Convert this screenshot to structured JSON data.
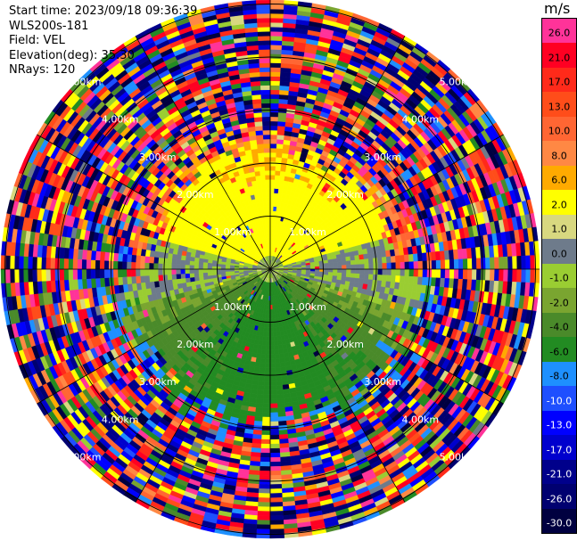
{
  "header": {
    "start_time": "Start time: 2023/09/18 09:36:39",
    "site": "WLS200s-181",
    "field": "Field: VEL",
    "elevation": "Elevation(deg): 35.30",
    "nrays": "NRays: 120"
  },
  "colorbar": {
    "unit": "m/s",
    "levels": [
      {
        "v": 26.0,
        "label": "26.0",
        "color": "#ff3399",
        "text": "#000"
      },
      {
        "v": 21.0,
        "label": "21.0",
        "color": "#ff0022",
        "text": "#000"
      },
      {
        "v": 17.0,
        "label": "17.0",
        "color": "#ff2a1a",
        "text": "#000"
      },
      {
        "v": 13.0,
        "label": "13.0",
        "color": "#ff4d1a",
        "text": "#000"
      },
      {
        "v": 10.0,
        "label": "10.0",
        "color": "#ff6633",
        "text": "#000"
      },
      {
        "v": 8.0,
        "label": "8.0",
        "color": "#ff8844",
        "text": "#000"
      },
      {
        "v": 6.0,
        "label": "6.0",
        "color": "#ffaa00",
        "text": "#000"
      },
      {
        "v": 2.0,
        "label": "2.0",
        "color": "#ffff00",
        "text": "#000"
      },
      {
        "v": 1.0,
        "label": "1.0",
        "color": "#d8d880",
        "text": "#000"
      },
      {
        "v": 0.0,
        "label": "0.0",
        "color": "#6e7b8b",
        "text": "#000"
      },
      {
        "v": -1.0,
        "label": "-1.0",
        "color": "#9acd32",
        "text": "#000"
      },
      {
        "v": -2.0,
        "label": "-2.0",
        "color": "#7aa530",
        "text": "#000"
      },
      {
        "v": -4.0,
        "label": "-4.0",
        "color": "#4a8a2a",
        "text": "#000"
      },
      {
        "v": -6.0,
        "label": "-6.0",
        "color": "#228b22",
        "text": "#000"
      },
      {
        "v": -8.0,
        "label": "-8.0",
        "color": "#1e90ff",
        "text": "#000"
      },
      {
        "v": -10.0,
        "label": "-10.0",
        "color": "#1e4fff",
        "text": "#fff"
      },
      {
        "v": -13.0,
        "label": "-13.0",
        "color": "#0000ff",
        "text": "#fff"
      },
      {
        "v": -17.0,
        "label": "-17.0",
        "color": "#0000cd",
        "text": "#fff"
      },
      {
        "v": -21.0,
        "label": "-21.0",
        "color": "#00008b",
        "text": "#fff"
      },
      {
        "v": -26.0,
        "label": "-26.0",
        "color": "#000070",
        "text": "#fff"
      },
      {
        "v": -30.0,
        "label": "-30.0",
        "color": "#000040",
        "text": "#fff"
      }
    ]
  },
  "chart_data": {
    "type": "heatmap",
    "projection": "polar-ppi",
    "field": "VEL",
    "units": "m/s",
    "n_rays": 120,
    "elevation_deg": 35.3,
    "range_rings_km": [
      1.0,
      2.0,
      3.0,
      4.0,
      5.0
    ],
    "ring_labels": [
      "1.00km",
      "2.00km",
      "3.00km",
      "4.00km",
      "5.00km"
    ],
    "spoke_angles_deg": [
      0,
      30,
      60,
      90,
      120,
      150,
      180,
      210,
      240,
      270,
      300,
      330
    ],
    "pattern": {
      "positive_sector": "north (yellow/orange, ~1-6 m/s, to ~2.3 km)",
      "zero_band": "east-west (grey, ~0 m/s)",
      "negative_sector": "south (green, ~-1 to -6 m/s, to ~2.8 km)",
      "outer_noise": "random velocities beyond ~2.5 km"
    }
  }
}
